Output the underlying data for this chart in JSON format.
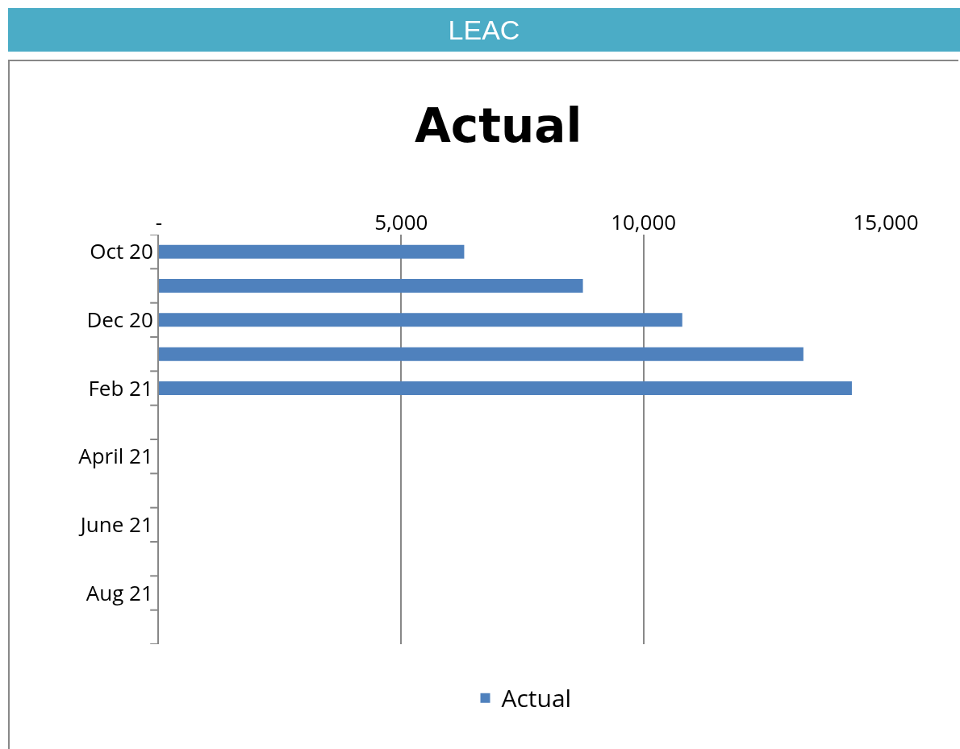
{
  "chart_data": {
    "type": "bar",
    "orientation": "horizontal",
    "subtitle": "LEAC",
    "title": "Actual",
    "categories": [
      "Oct 20",
      null,
      "Dec 20",
      null,
      "Feb 21",
      null,
      "April 21",
      null,
      "June 21",
      null,
      "Aug 21",
      null
    ],
    "series": [
      {
        "name": "Actual",
        "color": "#4f81bd",
        "values": [
          6300,
          8750,
          10800,
          13300,
          14300,
          null,
          null,
          null,
          null,
          null,
          null,
          null
        ]
      }
    ],
    "xlim": [
      0,
      15000
    ],
    "xticks": [
      {
        "value": 0,
        "label": "-"
      },
      {
        "value": 5000,
        "label": "5,000"
      },
      {
        "value": 10000,
        "label": "10,000"
      },
      {
        "value": 15000,
        "label": "15,000"
      }
    ],
    "grid": "x",
    "legend": "bottom"
  }
}
